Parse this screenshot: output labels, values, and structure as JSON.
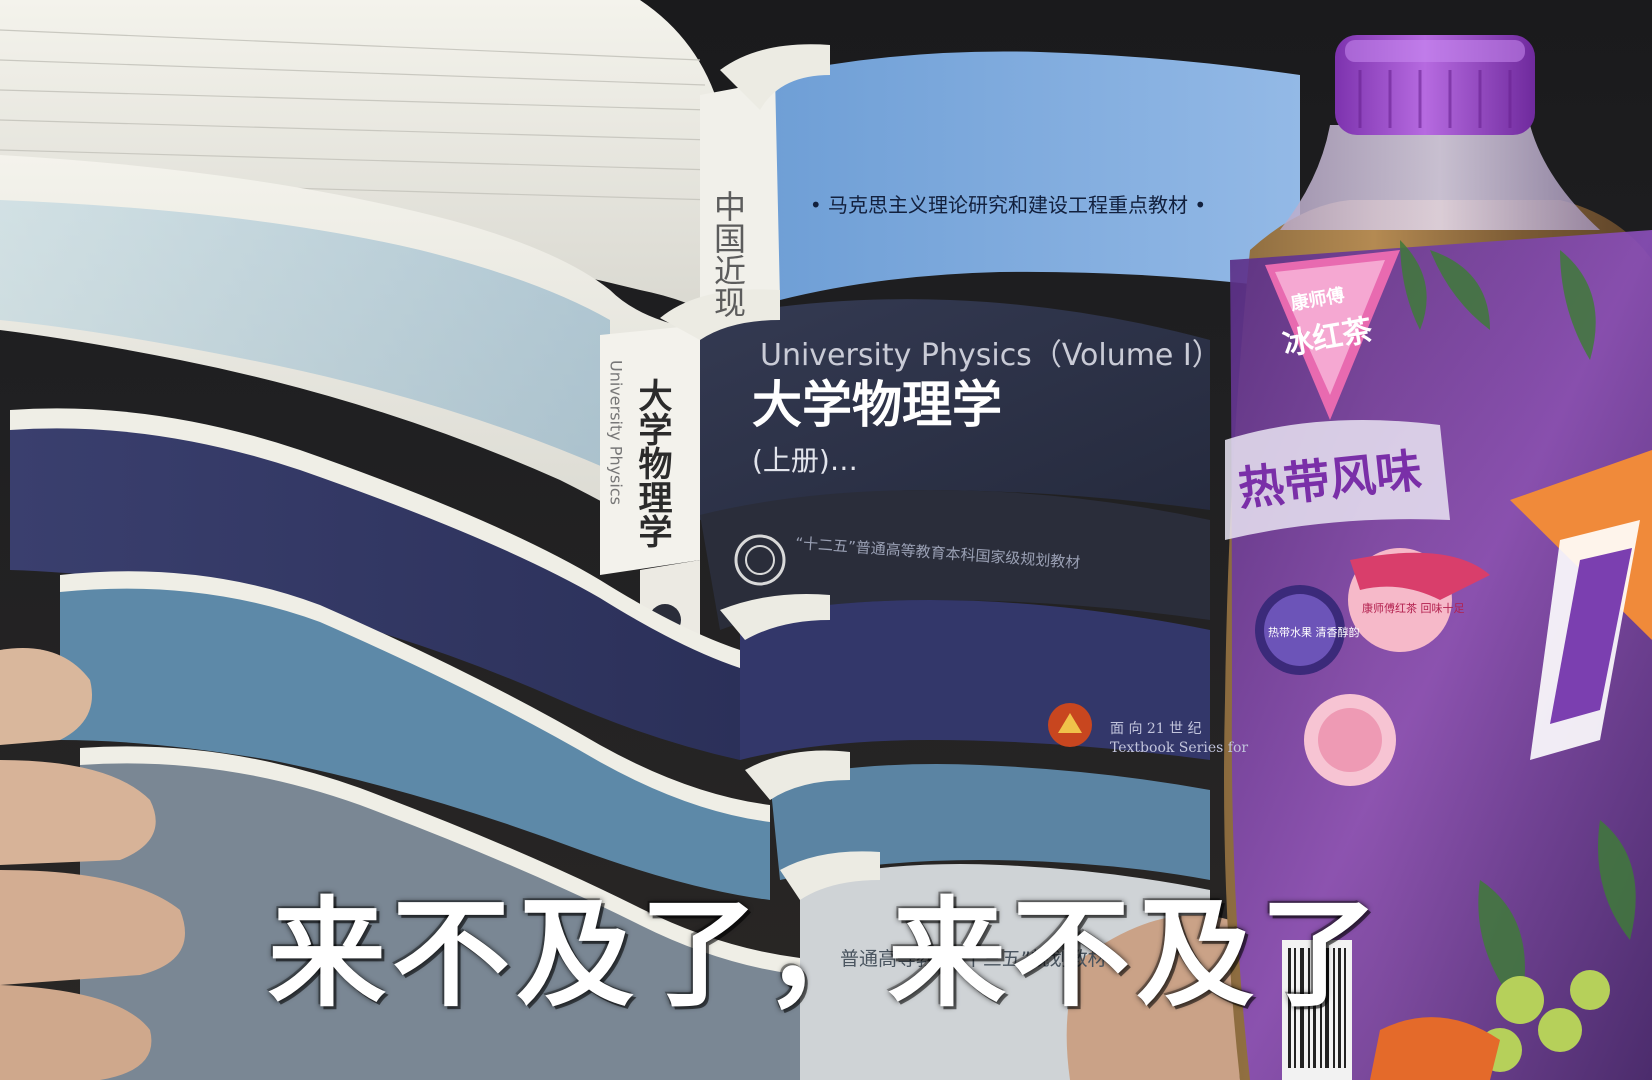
{
  "caption": "来不及了，来不及了",
  "books": {
    "top_cover_series": "• 马克思主义理论研究和建设工程重点教材 •",
    "top_spine_title": "中国近现",
    "physics_title_en": "University Physics（Volume I）",
    "physics_title_cn": "大学物理学",
    "physics_volume": "(上册)…",
    "physics_spine_title": "大学物理学",
    "physics_spine_en": "University Physics",
    "physics_series": "“十二五”普通高等教育本科国家级规划教材",
    "series_21_cn": "面 向 21 世 纪",
    "series_21_en": "Textbook Series for",
    "bottom_series": "普通高等教育“十三五”规划教材"
  },
  "bottle": {
    "brand": "康师傅",
    "product": "冰红茶",
    "flavor": "热带风味",
    "badge_left": "热带水果 清香醇韵",
    "badge_right": "康师傅红茶 回味十足"
  },
  "colors": {
    "caption": "#ffffff",
    "bottle_cap": "#9b45c9",
    "book_blue": "#7aa6d8",
    "book_navy": "#2e3349",
    "page_white": "#efeee6"
  }
}
